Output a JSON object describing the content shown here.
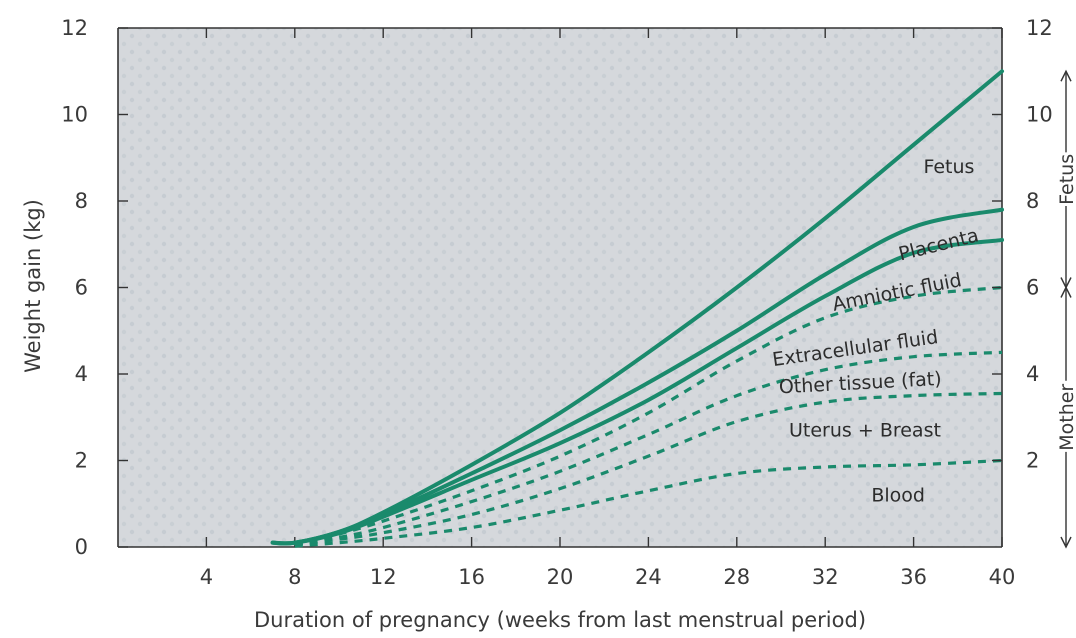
{
  "chart_data": {
    "type": "line",
    "title": "",
    "xlabel": "Duration of pregnancy (weeks from last menstrual period)",
    "ylabel": "Weight gain (kg)",
    "xlim": [
      0,
      40
    ],
    "ylim": [
      0,
      12
    ],
    "x_ticks": [
      4,
      8,
      12,
      16,
      20,
      24,
      28,
      32,
      36,
      40
    ],
    "y_ticks": [
      0,
      2,
      4,
      6,
      8,
      10,
      12
    ],
    "right_y_ticks": [
      2,
      4,
      6,
      8,
      10,
      12
    ],
    "right_axis_groups": [
      {
        "label": "Fetus",
        "from": 6,
        "to": 11
      },
      {
        "label": "Mother",
        "from": 0,
        "to": 6
      }
    ],
    "colors": {
      "curve": "#1a8a6c",
      "plot_bg": "#d6d8db",
      "axis": "#333333"
    },
    "series": [
      {
        "name": "Fetus",
        "style": "solid",
        "x": [
          7,
          8,
          10,
          12,
          16,
          20,
          24,
          28,
          32,
          36,
          40
        ],
        "y": [
          0.1,
          0.1,
          0.35,
          0.8,
          1.9,
          3.1,
          4.5,
          6.0,
          7.6,
          9.3,
          11.0
        ]
      },
      {
        "name": "Placenta",
        "style": "solid",
        "x": [
          7,
          8,
          10,
          12,
          16,
          20,
          24,
          28,
          32,
          36,
          40
        ],
        "y": [
          0.1,
          0.1,
          0.35,
          0.75,
          1.7,
          2.7,
          3.8,
          5.0,
          6.3,
          7.4,
          7.8
        ]
      },
      {
        "name": "Amniotic fluid",
        "style": "solid",
        "x": [
          7,
          8,
          10,
          12,
          16,
          20,
          24,
          28,
          32,
          36,
          40
        ],
        "y": [
          0.1,
          0.1,
          0.32,
          0.7,
          1.55,
          2.4,
          3.4,
          4.6,
          5.8,
          6.8,
          7.1
        ]
      },
      {
        "name": "Extracellular fluid",
        "style": "dashed",
        "x": [
          8,
          10,
          12,
          16,
          20,
          24,
          28,
          32,
          36,
          40
        ],
        "y": [
          0.05,
          0.3,
          0.6,
          1.3,
          2.1,
          3.1,
          4.3,
          5.3,
          5.8,
          6.0
        ]
      },
      {
        "name": "Other tissue (fat)",
        "style": "dashed",
        "x": [
          8,
          10,
          12,
          16,
          20,
          24,
          28,
          32,
          36,
          40
        ],
        "y": [
          0.05,
          0.22,
          0.45,
          1.05,
          1.75,
          2.6,
          3.5,
          4.1,
          4.4,
          4.5
        ]
      },
      {
        "name": "Uterus + Breast",
        "style": "dashed",
        "x": [
          8,
          10,
          12,
          16,
          20,
          24,
          28,
          32,
          36,
          40
        ],
        "y": [
          0.05,
          0.18,
          0.33,
          0.75,
          1.35,
          2.1,
          2.9,
          3.35,
          3.5,
          3.55
        ]
      },
      {
        "name": "Blood",
        "style": "dashed",
        "x": [
          8,
          10,
          12,
          16,
          20,
          24,
          28,
          32,
          36,
          40
        ],
        "y": [
          0.02,
          0.1,
          0.2,
          0.45,
          0.85,
          1.3,
          1.7,
          1.85,
          1.9,
          2.0
        ]
      }
    ]
  }
}
